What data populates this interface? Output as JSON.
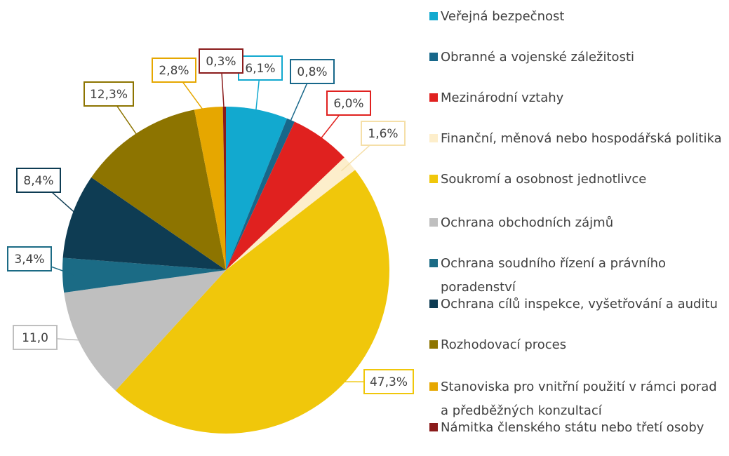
{
  "chart_data": {
    "type": "pie",
    "categories": [
      "Veřejná bezpečnost",
      "Obranné a vojenské záležitosti",
      "Mezinárodní vztahy",
      "Finanční, měnová nebo hospodářská politika",
      "Soukromí a osobnost jednotlivce",
      "Ochrana obchodních zájmů",
      "Ochrana soudního řízení a právního poradenství",
      "Ochrana cílů inspekce, vyšetřování a auditu",
      "Rozhodovací proces",
      "Stanoviska pro vnitřní použití v rámci porad a předběžných konzultací",
      "Námitka členského státu nebo třetí osoby"
    ],
    "values": [
      6.1,
      0.8,
      6.0,
      1.6,
      47.3,
      11.0,
      3.4,
      8.4,
      12.3,
      2.8,
      0.3
    ],
    "value_labels": [
      "6,1%",
      "0,8%",
      "6,0%",
      "1,6%",
      "47,3%",
      "11,0",
      "3,4%",
      "8,4%",
      "12,3%",
      "2,8%",
      "0,3%"
    ],
    "colors": [
      "#12a9cf",
      "#17678a",
      "#e0211f",
      "#fdeecb",
      "#f0c70b",
      "#bfbfbf",
      "#1b6b85",
      "#0e3c53",
      "#8d7400",
      "#e6a700",
      "#8a1b1b"
    ],
    "legend": "right"
  }
}
